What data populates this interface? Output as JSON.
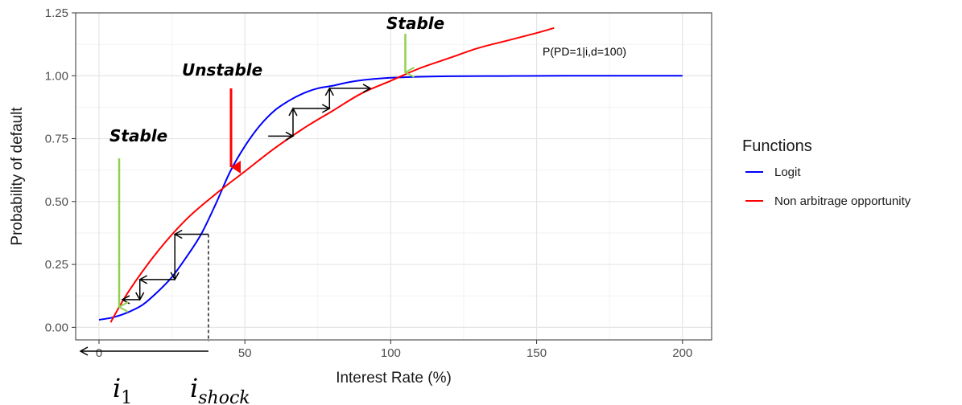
{
  "chart_data": {
    "type": "line",
    "title": "",
    "xlabel": "Interest Rate (%)",
    "ylabel": "Probability of default",
    "xlim": [
      -8,
      210
    ],
    "ylim": [
      -0.05,
      1.25
    ],
    "x_ticks": [
      0,
      50,
      100,
      150,
      200
    ],
    "x_tick_labels": [
      "0",
      "50",
      "100",
      "150",
      "200"
    ],
    "y_ticks": [
      0.0,
      0.25,
      0.5,
      0.75,
      1.0,
      1.25
    ],
    "y_tick_labels": [
      "0.00",
      "0.25",
      "0.50",
      "0.75",
      "1.00",
      "1.25"
    ],
    "grid": true,
    "legend": {
      "title": "Functions",
      "position": "right"
    },
    "series": [
      {
        "name": "Logit",
        "color": "#0000ff",
        "x": [
          0,
          5,
          10,
          15,
          20,
          25,
          30,
          35,
          40,
          45,
          50,
          55,
          60,
          65,
          70,
          75,
          80,
          85,
          90,
          95,
          100,
          110,
          120,
          140,
          160,
          180,
          200
        ],
        "y": [
          0.03,
          0.04,
          0.06,
          0.09,
          0.14,
          0.2,
          0.28,
          0.37,
          0.49,
          0.62,
          0.72,
          0.8,
          0.86,
          0.9,
          0.93,
          0.95,
          0.96,
          0.973,
          0.982,
          0.988,
          0.992,
          0.996,
          0.998,
          0.999,
          1.0,
          1.0,
          1.0
        ]
      },
      {
        "name": "Non arbitrage opportunity",
        "color": "#ff0000",
        "x": [
          4,
          10,
          20,
          30,
          40,
          50,
          60,
          70,
          80,
          90,
          100,
          110,
          120,
          130,
          140,
          150,
          156
        ],
        "y": [
          0.02,
          0.14,
          0.3,
          0.43,
          0.53,
          0.62,
          0.71,
          0.79,
          0.86,
          0.93,
          0.98,
          1.03,
          1.07,
          1.11,
          1.14,
          1.17,
          1.19
        ]
      }
    ],
    "cobweb_path": [
      [
        37.5,
        0.37
      ],
      [
        26,
        0.37
      ],
      [
        26,
        0.19
      ],
      [
        14,
        0.19
      ],
      [
        14,
        0.11
      ],
      [
        8,
        0.11
      ]
    ],
    "cobweb_path_up": [
      [
        58,
        0.76
      ],
      [
        66.5,
        0.76
      ],
      [
        66.5,
        0.87
      ],
      [
        79,
        0.87
      ],
      [
        79,
        0.95
      ],
      [
        93,
        0.95
      ]
    ],
    "shock_line": {
      "x": 37.5,
      "y_from": 0.37,
      "y_to": -0.05
    },
    "annotations": {
      "stable_left": "Stable",
      "unstable": "Unstable",
      "stable_right": "Stable",
      "formula": "P(PD=1|i,d=100)"
    },
    "math_labels": {
      "i1_base": "i",
      "i1_sub": "1",
      "ishock_base": "i",
      "ishock_sub": "shock"
    },
    "arrow_colors": {
      "stable": "#92d050",
      "unstable": "#ff0000"
    }
  }
}
